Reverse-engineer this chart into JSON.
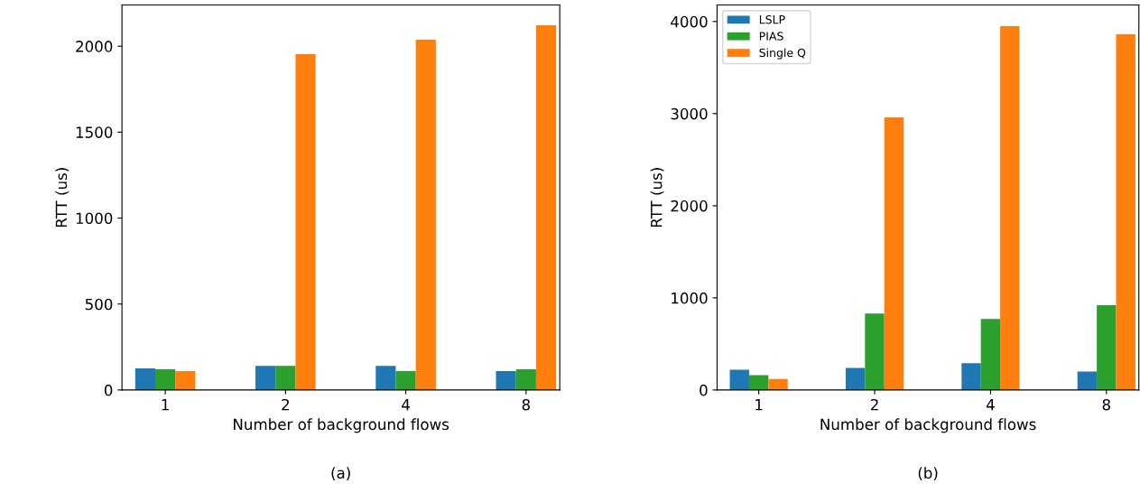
{
  "chart_data": [
    {
      "type": "bar",
      "categories": [
        "1",
        "2",
        "4",
        "8"
      ],
      "xlabel": "Number of background flows",
      "ylabel": "RTT (us)",
      "ylim": [
        0,
        2240
      ],
      "yticks": [
        0,
        500,
        1000,
        1500,
        2000
      ],
      "grid": false,
      "legend": false,
      "annotations": [
        "(a)"
      ],
      "series": [
        {
          "color": "#1f77b4",
          "values": [
            126,
            140,
            140,
            110
          ]
        },
        {
          "color": "#2ca02c",
          "values": [
            120,
            140,
            110,
            120
          ]
        },
        {
          "color": "#ff7f0e",
          "values": [
            110,
            1953,
            2037,
            2121
          ]
        }
      ]
    },
    {
      "type": "bar",
      "categories": [
        "1",
        "2",
        "4",
        "8"
      ],
      "xlabel": "Number of background flows",
      "ylabel": "RTT (us)",
      "ylim": [
        0,
        4180
      ],
      "yticks": [
        0,
        1000,
        2000,
        3000,
        4000
      ],
      "grid": false,
      "legend": "top left",
      "annotations": [
        "(b)"
      ],
      "series": [
        {
          "name": "LSLP",
          "color": "#1f77b4",
          "values": [
            220,
            240,
            290,
            200
          ]
        },
        {
          "name": "PIAS",
          "color": "#2ca02c",
          "values": [
            160,
            830,
            770,
            920
          ]
        },
        {
          "name": "Single Q",
          "color": "#ff7f0e",
          "values": [
            120,
            2960,
            3950,
            3860
          ]
        }
      ]
    }
  ]
}
